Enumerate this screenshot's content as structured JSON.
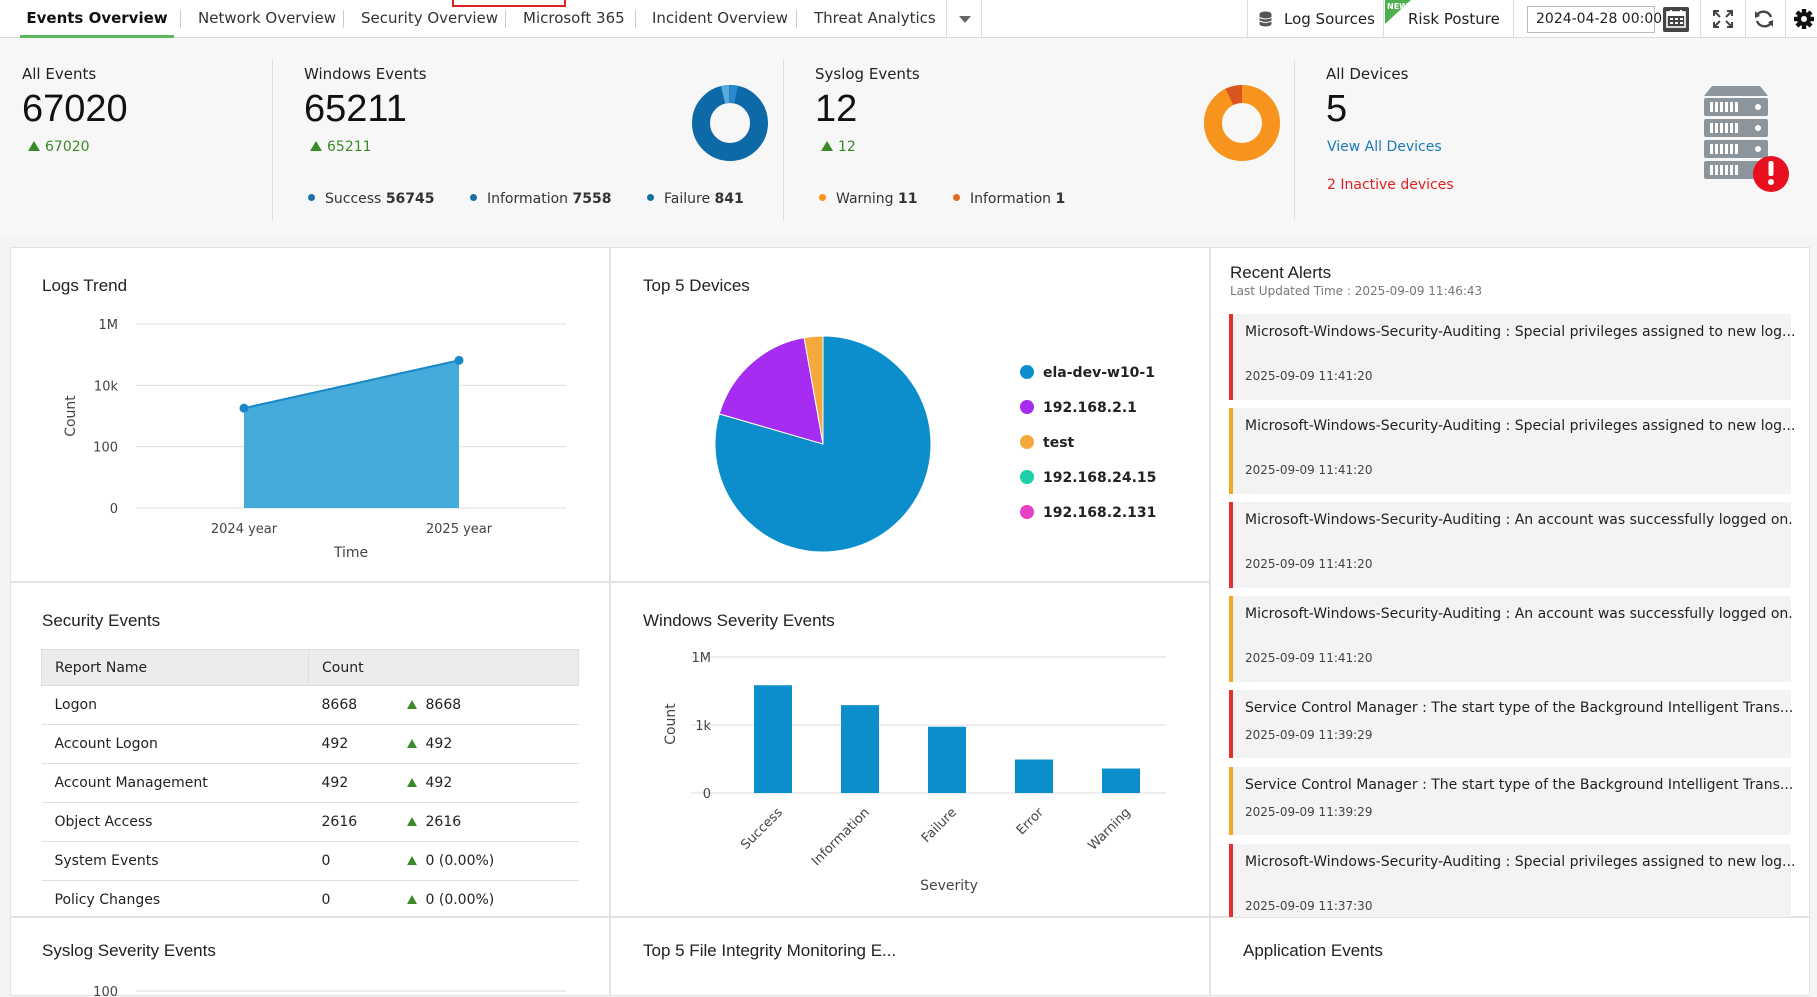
{
  "nav": {
    "tabs": [
      {
        "label": "Events Overview"
      },
      {
        "label": "Network Overview"
      },
      {
        "label": "Security Overview"
      },
      {
        "label": "Microsoft 365"
      },
      {
        "label": "Incident Overview"
      },
      {
        "label": "Threat Analytics"
      }
    ],
    "log_sources": "Log Sources",
    "new_badge": "NEW",
    "risk_posture": "Risk Posture",
    "date_value": "2024-04-28 00:00"
  },
  "stats": {
    "all_events": {
      "label": "All Events",
      "value": "67020",
      "delta": "67020"
    },
    "windows_events": {
      "label": "Windows Events",
      "value": "65211",
      "delta": "65211",
      "legend": [
        {
          "label": "Success",
          "value": "56745",
          "color": "#1a6fa8"
        },
        {
          "label": "Information",
          "value": "7558",
          "color": "#1a6fa8"
        },
        {
          "label": "Failure",
          "value": "841",
          "color": "#1a6fa8"
        }
      ]
    },
    "syslog_events": {
      "label": "Syslog Events",
      "value": "12",
      "delta": "12",
      "legend": [
        {
          "label": "Warning",
          "value": "11",
          "color": "#f7941d"
        },
        {
          "label": "Information",
          "value": "1",
          "color": "#e06a1e"
        }
      ]
    },
    "all_devices": {
      "label": "All Devices",
      "value": "5",
      "view_all": "View All Devices",
      "inactive": "2 Inactive devices"
    }
  },
  "panels": {
    "logs_trend": "Logs Trend",
    "top5_devices": "Top 5 Devices",
    "recent_alerts": "Recent Alerts",
    "last_updated": "Last Updated Time : 2025-09-09 11:46:43",
    "security_events": "Security Events",
    "windows_severity": "Windows Severity Events",
    "syslog_severity": "Syslog Severity Events",
    "top5_fim": "Top 5 File Integrity Monitoring E...",
    "application_events": "Application Events"
  },
  "chart_data": [
    {
      "type": "area",
      "title": "Logs Trend",
      "xlabel": "Time",
      "ylabel": "Count",
      "categories": [
        "2024 year",
        "2025 year"
      ],
      "values": [
        1800,
        65211
      ],
      "y_scale": "log",
      "y_ticks": [
        "0",
        "100",
        "10k",
        "1M"
      ],
      "color": "#3aa6d9",
      "grid": true
    },
    {
      "type": "pie",
      "title": "Top 5 Devices",
      "categories": [
        "ela-dev-w10-1",
        "192.168.2.1",
        "test",
        "192.168.24.15",
        "192.168.2.131"
      ],
      "values": [
        79.5,
        17.7,
        2.8,
        0.0,
        0.0
      ],
      "colors": [
        "#0b8ecb",
        "#a52cf0",
        "#f5a93c",
        "#1ccfa5",
        "#e83fc7"
      ],
      "legend": "right"
    },
    {
      "type": "bar",
      "title": "Windows Severity Events",
      "xlabel": "Severity",
      "ylabel": "Count",
      "categories": [
        "Success",
        "Information",
        "Failure",
        "Error",
        "Warning"
      ],
      "values": [
        56745,
        7558,
        841,
        30,
        12
      ],
      "y_scale": "log",
      "y_ticks": [
        "0",
        "1k",
        "1M"
      ],
      "color": "#0b8ecb",
      "grid": true
    },
    {
      "type": "line",
      "title": "Syslog Severity Events",
      "y_ticks": [
        "100"
      ]
    }
  ],
  "security_table": {
    "headers": [
      "Report Name",
      "Count"
    ],
    "rows": [
      {
        "name": "Logon",
        "count": "8668",
        "delta": "8668"
      },
      {
        "name": "Account Logon",
        "count": "492",
        "delta": "492"
      },
      {
        "name": "Account Management",
        "count": "492",
        "delta": "492"
      },
      {
        "name": "Object Access",
        "count": "2616",
        "delta": "2616"
      },
      {
        "name": "System Events",
        "count": "0",
        "delta": "0 (0.00%)"
      },
      {
        "name": "Policy Changes",
        "count": "0",
        "delta": "0 (0.00%)"
      }
    ]
  },
  "alerts": [
    {
      "msg": "Microsoft-Windows-Security-Auditing : Special privileges assigned to new log...",
      "time": "2025-09-09 11:41:20",
      "color": "#e53030"
    },
    {
      "msg": "Microsoft-Windows-Security-Auditing : Special privileges assigned to new log...",
      "time": "2025-09-09 11:41:20",
      "color": "#f5a623"
    },
    {
      "msg": "Microsoft-Windows-Security-Auditing : An account was successfully logged on.",
      "time": "2025-09-09 11:41:20",
      "color": "#e53030"
    },
    {
      "msg": "Microsoft-Windows-Security-Auditing : An account was successfully logged on.",
      "time": "2025-09-09 11:41:20",
      "color": "#f5a623"
    },
    {
      "msg": "Service Control Manager : The start type of the Background Intelligent Trans...",
      "time": "2025-09-09 11:39:29",
      "color": "#e53030"
    },
    {
      "msg": "Service Control Manager : The start type of the Background Intelligent Trans...",
      "time": "2025-09-09 11:39:29",
      "color": "#f5a623"
    },
    {
      "msg": "Microsoft-Windows-Security-Auditing : Special privileges assigned to new log...",
      "time": "2025-09-09 11:37:30",
      "color": "#e53030"
    }
  ]
}
